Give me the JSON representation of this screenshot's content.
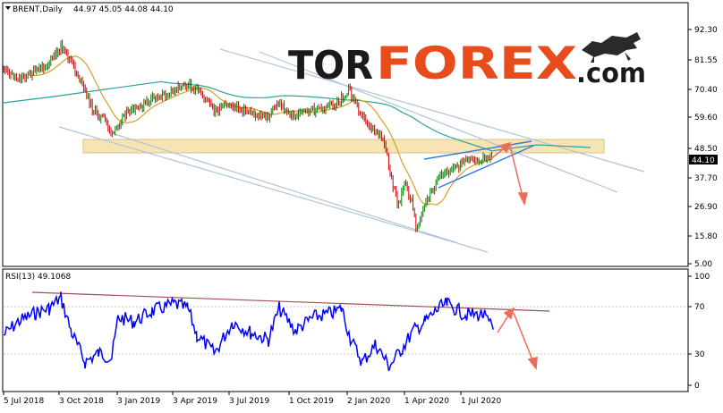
{
  "header": {
    "symbol": "BRENT,Daily",
    "ohlc": "44.97 45.05 44.08 44.10"
  },
  "watermark": {
    "part1": "TOR",
    "part2": "FOREX",
    "part3": ".com",
    "color1": "#1a1a1a",
    "color2": "#e84c1c",
    "icon": "bull-icon"
  },
  "price_axis": {
    "ticks": [
      "92.30",
      "81.55",
      "70.40",
      "59.60",
      "48.50",
      "37.70",
      "26.90",
      "15.80",
      "5.00"
    ],
    "current": "44.10"
  },
  "rsi": {
    "label": "RSI(13) 49.1068",
    "ticks": [
      "100",
      "70",
      "30",
      "0"
    ]
  },
  "time_axis": {
    "labels": [
      "5 Jul 2018",
      "3 Oct 2018",
      "3 Jan 2019",
      "3 Apr 2019",
      "3 Jul 2019",
      "1 Oct 2019",
      "2 Jan 2020",
      "1 Apr 2020",
      "1 Jul 2020"
    ]
  },
  "colors": {
    "bull": "#008000",
    "bear": "#cc0000",
    "ma_fast": "#d4a020",
    "ma_slow": "#2aa09a",
    "rsi_line": "#0000ff",
    "zone": "#f5dfa0",
    "forecast": "#f06a5a",
    "trendline": "#b0c4d8"
  }
}
